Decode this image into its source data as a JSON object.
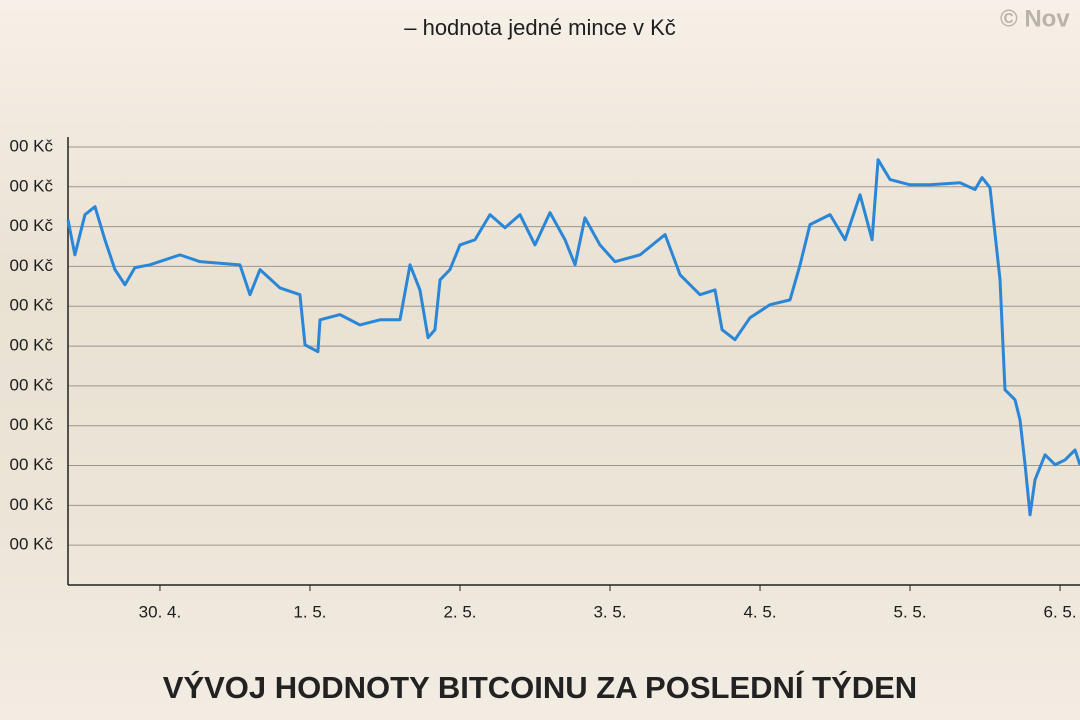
{
  "chart_data": {
    "type": "line",
    "title": "VÝVOJ HODNOTY BITCOINU ZA POSLEDNÍ TÝDEN",
    "subtitle": "– hodnota jedné mince v Kč",
    "credit": "© Nov",
    "grid": true,
    "xlim": [
      -0.613,
      6.133
    ],
    "xticks": [
      {
        "value": 0,
        "label": "30. 4."
      },
      {
        "value": 1,
        "label": "1. 5."
      },
      {
        "value": 2,
        "label": "2. 5."
      },
      {
        "value": 3,
        "label": "3. 5."
      },
      {
        "value": 4,
        "label": "4. 5."
      },
      {
        "value": 5,
        "label": "5. 5."
      },
      {
        "value": 6,
        "label": "6. 5."
      }
    ],
    "ylim": [
      0,
      1125
    ],
    "yticks": [
      {
        "value": 100,
        "label": "00 Kč"
      },
      {
        "value": 200,
        "label": "00 Kč"
      },
      {
        "value": 300,
        "label": "00 Kč"
      },
      {
        "value": 400,
        "label": "00 Kč"
      },
      {
        "value": 500,
        "label": "00 Kč"
      },
      {
        "value": 600,
        "label": "00 Kč"
      },
      {
        "value": 700,
        "label": "00 Kč"
      },
      {
        "value": 800,
        "label": "00 Kč"
      },
      {
        "value": 900,
        "label": "00 Kč"
      },
      {
        "value": 1000,
        "label": "00 Kč"
      },
      {
        "value": 1100,
        "label": "00 Kč"
      }
    ],
    "x": [
      -0.613,
      -0.567,
      -0.5,
      -0.433,
      -0.367,
      -0.3,
      -0.233,
      -0.167,
      -0.067,
      0.133,
      0.267,
      0.533,
      0.6,
      0.667,
      0.8,
      0.933,
      0.967,
      1.053,
      1.067,
      1.2,
      1.333,
      1.467,
      1.6,
      1.667,
      1.733,
      1.787,
      1.833,
      1.867,
      1.933,
      2,
      2.1,
      2.2,
      2.3,
      2.4,
      2.5,
      2.6,
      2.7,
      2.767,
      2.833,
      2.933,
      3.033,
      3.2,
      3.367,
      3.467,
      3.6,
      3.7,
      3.747,
      3.833,
      3.933,
      4.067,
      4.2,
      4.267,
      4.333,
      4.467,
      4.567,
      4.667,
      4.747,
      4.787,
      4.867,
      5,
      5.133,
      5.333,
      5.433,
      5.48,
      5.533,
      5.6,
      5.633,
      5.7,
      5.733,
      5.767,
      5.8,
      5.833,
      5.9,
      5.967,
      6.033,
      6.1,
      6.133
    ],
    "series": [
      {
        "color": "#2a86d6",
        "values": [
          917,
          829,
          930,
          950,
          867,
          792,
          754,
          797,
          804,
          829,
          812,
          804,
          729,
          792,
          746,
          729,
          603,
          586,
          666,
          679,
          653,
          666,
          666,
          804,
          741,
          621,
          641,
          766,
          792,
          854,
          867,
          930,
          897,
          930,
          854,
          935,
          867,
          804,
          922,
          854,
          812,
          829,
          880,
          779,
          729,
          741,
          641,
          616,
          671,
          704,
          716,
          804,
          905,
          930,
          867,
          980,
          867,
          1068,
          1018,
          1005,
          1005,
          1010,
          993,
          1023,
          998,
          766,
          490,
          465,
          415,
          302,
          176,
          264,
          327,
          302,
          314,
          339,
          302
        ]
      }
    ]
  }
}
